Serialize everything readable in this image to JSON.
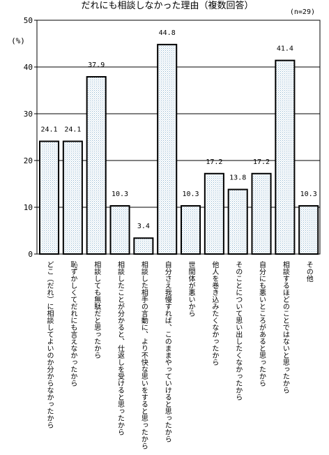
{
  "chart_data": {
    "type": "bar",
    "title": "だれにも相談しなかった理由（複数回答）",
    "note": "(n=29)",
    "ylabel": "(%)",
    "ylim": [
      0,
      50
    ],
    "yticks": [
      0,
      10,
      20,
      30,
      40,
      50
    ],
    "grid": true,
    "categories": [
      "どこ（だれ）に相談してよいのか分からなかったから",
      "恥ずかしくてだれにも言えなかったから",
      "相談しても無駄だと思ったから",
      "相談したことが分かると、仕返しを受けると思ったから",
      "相談した相手の言動に、より不快な思いをすると思ったから",
      "自分さえ我慢すれば、このままやっていけると思ったから",
      "世間体が悪いから",
      "他人を巻き込みたくなかったから",
      "そのことについて思い出したくなかったから",
      "自分にも悪いところがあると思ったから",
      "相談するほどのことではないと思ったから",
      "その他"
    ],
    "values": [
      24.1,
      24.1,
      37.9,
      10.3,
      3.4,
      44.8,
      10.3,
      17.2,
      13.8,
      17.2,
      41.4,
      10.3
    ]
  }
}
